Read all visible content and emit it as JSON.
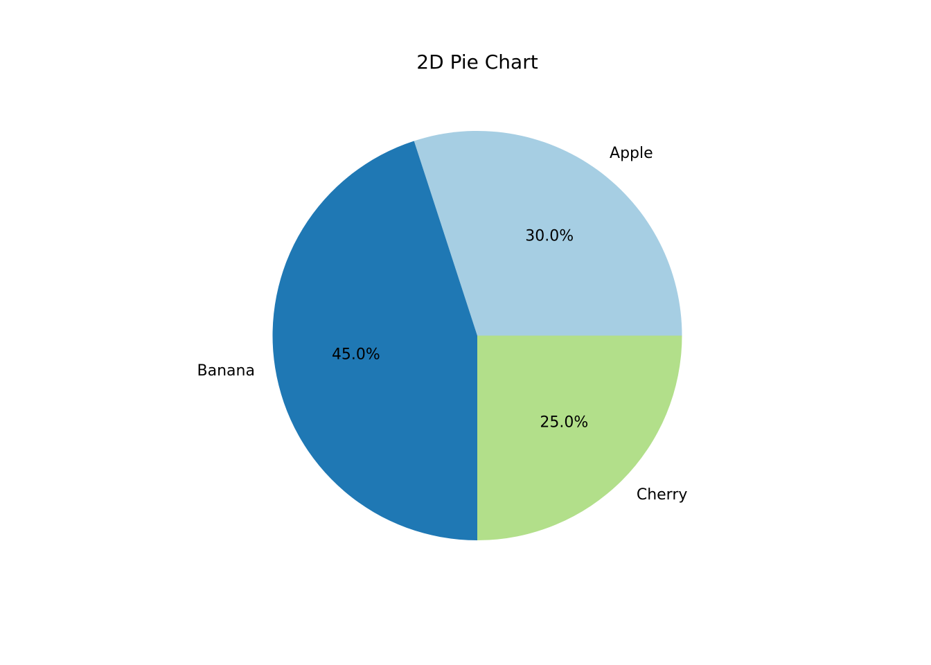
{
  "chart_data": {
    "type": "pie",
    "title": "2D Pie Chart",
    "categories": [
      "Apple",
      "Banana",
      "Cherry"
    ],
    "values": [
      30,
      45,
      25
    ],
    "percent_labels": [
      "30.0%",
      "45.0%",
      "25.0%"
    ],
    "colors": [
      "#a6cee3",
      "#1f78b4",
      "#b2df8a"
    ],
    "start_angle_deg": 0,
    "direction": "counterclockwise",
    "legend": "none"
  }
}
